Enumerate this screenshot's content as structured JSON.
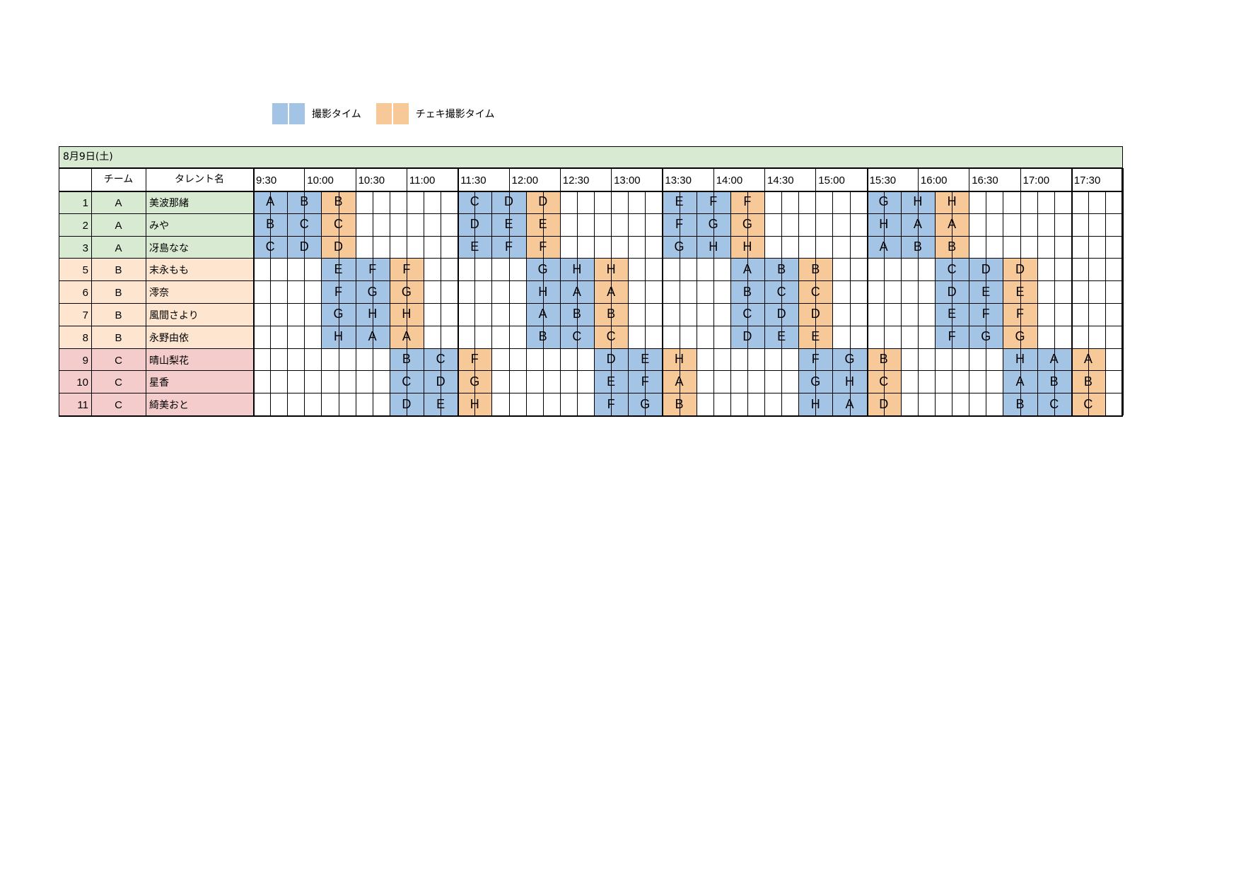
{
  "legend": [
    {
      "label": "撮影タイム",
      "color": "#a4c4e6"
    },
    {
      "label": "チェキ撮影タイム",
      "color": "#f7c898"
    }
  ],
  "date_label": "8月9日(土)",
  "headers": {
    "no": "",
    "team": "チーム",
    "name": "タレント名"
  },
  "time_labels": [
    "9:30",
    "10:00",
    "10:30",
    "11:00",
    "11:30",
    "12:00",
    "12:30",
    "13:00",
    "13:30",
    "14:00",
    "14:30",
    "15:00",
    "15:30",
    "16:00",
    "16:30",
    "17:00",
    "17:30"
  ],
  "colors": {
    "blue": "#a4c4e6",
    "orange": "#f7c898",
    "team_a": "#d9ead3",
    "team_b": "#fde5cf",
    "team_c": "#f4cccc"
  },
  "rows": [
    {
      "no": "1",
      "team": "A",
      "name": "美波那緒",
      "slots": {
        "0": [
          "A",
          "b"
        ],
        "2": [
          "B",
          "b"
        ],
        "4": [
          "B",
          "o"
        ],
        "12": [
          "C",
          "b"
        ],
        "14": [
          "D",
          "b"
        ],
        "16": [
          "D",
          "o"
        ],
        "24": [
          "E",
          "b"
        ],
        "26": [
          "F",
          "b"
        ],
        "28": [
          "F",
          "o"
        ],
        "36": [
          "G",
          "b"
        ],
        "38": [
          "H",
          "b"
        ],
        "40": [
          "H",
          "o"
        ]
      }
    },
    {
      "no": "2",
      "team": "A",
      "name": "みや",
      "slots": {
        "0": [
          "B",
          "b"
        ],
        "2": [
          "C",
          "b"
        ],
        "4": [
          "C",
          "o"
        ],
        "12": [
          "D",
          "b"
        ],
        "14": [
          "E",
          "b"
        ],
        "16": [
          "E",
          "o"
        ],
        "24": [
          "F",
          "b"
        ],
        "26": [
          "G",
          "b"
        ],
        "28": [
          "G",
          "o"
        ],
        "36": [
          "H",
          "b"
        ],
        "38": [
          "A",
          "b"
        ],
        "40": [
          "A",
          "o"
        ]
      }
    },
    {
      "no": "3",
      "team": "A",
      "name": "冴島なな",
      "slots": {
        "0": [
          "C",
          "b"
        ],
        "2": [
          "D",
          "b"
        ],
        "4": [
          "D",
          "o"
        ],
        "12": [
          "E",
          "b"
        ],
        "14": [
          "F",
          "b"
        ],
        "16": [
          "F",
          "o"
        ],
        "24": [
          "G",
          "b"
        ],
        "26": [
          "H",
          "b"
        ],
        "28": [
          "H",
          "o"
        ],
        "36": [
          "A",
          "b"
        ],
        "38": [
          "B",
          "b"
        ],
        "40": [
          "B",
          "o"
        ]
      }
    },
    {
      "no": "5",
      "team": "B",
      "name": "末永もも",
      "slots": {
        "4": [
          "E",
          "b"
        ],
        "6": [
          "F",
          "b"
        ],
        "8": [
          "F",
          "o"
        ],
        "16": [
          "G",
          "b"
        ],
        "18": [
          "H",
          "b"
        ],
        "20": [
          "H",
          "o"
        ],
        "28": [
          "A",
          "b"
        ],
        "30": [
          "B",
          "b"
        ],
        "32": [
          "B",
          "o"
        ],
        "40": [
          "C",
          "b"
        ],
        "42": [
          "D",
          "b"
        ],
        "44": [
          "D",
          "o"
        ]
      }
    },
    {
      "no": "6",
      "team": "B",
      "name": "澪奈",
      "slots": {
        "4": [
          "F",
          "b"
        ],
        "6": [
          "G",
          "b"
        ],
        "8": [
          "G",
          "o"
        ],
        "16": [
          "H",
          "b"
        ],
        "18": [
          "A",
          "b"
        ],
        "20": [
          "A",
          "o"
        ],
        "28": [
          "B",
          "b"
        ],
        "30": [
          "C",
          "b"
        ],
        "32": [
          "C",
          "o"
        ],
        "40": [
          "D",
          "b"
        ],
        "42": [
          "E",
          "b"
        ],
        "44": [
          "E",
          "o"
        ]
      }
    },
    {
      "no": "7",
      "team": "B",
      "name": "風間さより",
      "slots": {
        "4": [
          "G",
          "b"
        ],
        "6": [
          "H",
          "b"
        ],
        "8": [
          "H",
          "o"
        ],
        "16": [
          "A",
          "b"
        ],
        "18": [
          "B",
          "b"
        ],
        "20": [
          "B",
          "o"
        ],
        "28": [
          "C",
          "b"
        ],
        "30": [
          "D",
          "b"
        ],
        "32": [
          "D",
          "o"
        ],
        "40": [
          "E",
          "b"
        ],
        "42": [
          "F",
          "b"
        ],
        "44": [
          "F",
          "o"
        ]
      }
    },
    {
      "no": "8",
      "team": "B",
      "name": "永野由依",
      "slots": {
        "4": [
          "H",
          "b"
        ],
        "6": [
          "A",
          "b"
        ],
        "8": [
          "A",
          "o"
        ],
        "16": [
          "B",
          "b"
        ],
        "18": [
          "C",
          "b"
        ],
        "20": [
          "C",
          "o"
        ],
        "28": [
          "D",
          "b"
        ],
        "30": [
          "E",
          "b"
        ],
        "32": [
          "E",
          "o"
        ],
        "40": [
          "F",
          "b"
        ],
        "42": [
          "G",
          "b"
        ],
        "44": [
          "G",
          "o"
        ]
      }
    },
    {
      "no": "9",
      "team": "C",
      "name": "晴山梨花",
      "slots": {
        "8": [
          "B",
          "b"
        ],
        "10": [
          "C",
          "b"
        ],
        "12": [
          "F",
          "o"
        ],
        "20": [
          "D",
          "b"
        ],
        "22": [
          "E",
          "b"
        ],
        "24": [
          "H",
          "o"
        ],
        "32": [
          "F",
          "b"
        ],
        "34": [
          "G",
          "b"
        ],
        "36": [
          "B",
          "o"
        ],
        "44": [
          "H",
          "b"
        ],
        "46": [
          "A",
          "b"
        ],
        "48": [
          "A",
          "o"
        ]
      }
    },
    {
      "no": "10",
      "team": "C",
      "name": "星香",
      "slots": {
        "8": [
          "C",
          "b"
        ],
        "10": [
          "D",
          "b"
        ],
        "12": [
          "G",
          "o"
        ],
        "20": [
          "E",
          "b"
        ],
        "22": [
          "F",
          "b"
        ],
        "24": [
          "A",
          "o"
        ],
        "32": [
          "G",
          "b"
        ],
        "34": [
          "H",
          "b"
        ],
        "36": [
          "C",
          "o"
        ],
        "44": [
          "A",
          "b"
        ],
        "46": [
          "B",
          "b"
        ],
        "48": [
          "B",
          "o"
        ]
      }
    },
    {
      "no": "11",
      "team": "C",
      "name": "綺美おと",
      "slots": {
        "8": [
          "D",
          "b"
        ],
        "10": [
          "E",
          "b"
        ],
        "12": [
          "H",
          "o"
        ],
        "20": [
          "F",
          "b"
        ],
        "22": [
          "G",
          "b"
        ],
        "24": [
          "B",
          "o"
        ],
        "32": [
          "H",
          "b"
        ],
        "34": [
          "A",
          "b"
        ],
        "36": [
          "D",
          "o"
        ],
        "44": [
          "B",
          "b"
        ],
        "46": [
          "C",
          "b"
        ],
        "48": [
          "C",
          "o"
        ]
      }
    }
  ]
}
